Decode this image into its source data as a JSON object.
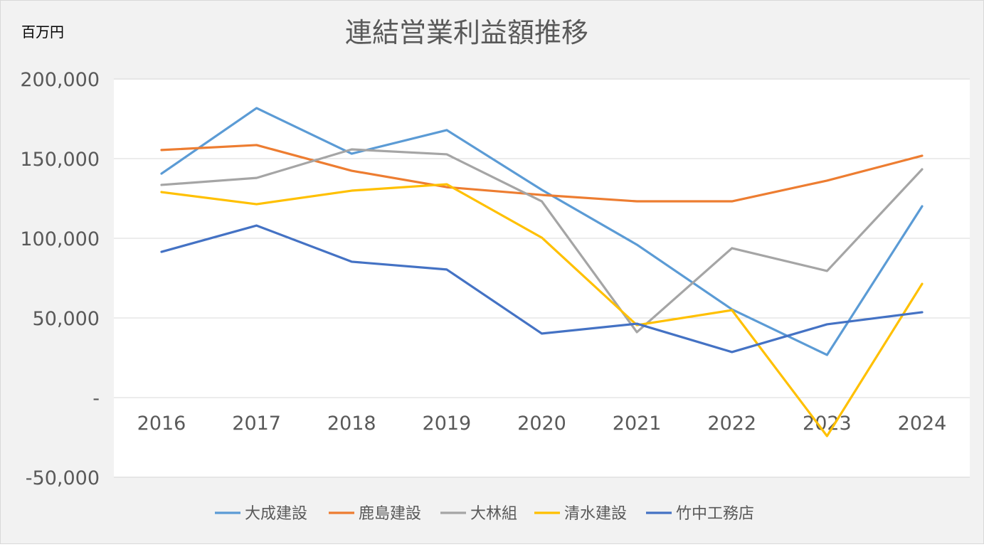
{
  "chart_data": {
    "type": "line",
    "title": "連結営業利益額推移",
    "ylabel": "百万円",
    "xlabel": "",
    "categories": [
      "2016",
      "2017",
      "2018",
      "2019",
      "2020",
      "2021",
      "2022",
      "2023",
      "2024"
    ],
    "ylim": [
      -50000,
      200000
    ],
    "yticks": [
      200000,
      150000,
      100000,
      50000,
      0,
      -50000
    ],
    "ytick_labels": [
      "200,000",
      "150,000",
      "100,000",
      "50,000",
      "-",
      "-50,000"
    ],
    "grid": true,
    "legend_position": "bottom",
    "series": [
      {
        "name": "大成建設",
        "color": "#5B9BD5",
        "values": [
          140600,
          181700,
          153100,
          167900,
          130400,
          96000,
          55400,
          26800,
          120100
        ]
      },
      {
        "name": "鹿島建設",
        "color": "#ED7D31",
        "values": [
          155400,
          158500,
          142400,
          132100,
          127200,
          123200,
          123200,
          136200,
          151800
        ]
      },
      {
        "name": "大林組",
        "color": "#A5A5A5",
        "values": [
          133500,
          137900,
          155800,
          152700,
          123200,
          41100,
          93800,
          79500,
          143300
        ]
      },
      {
        "name": "清水建設",
        "color": "#FFC000",
        "values": [
          129000,
          121400,
          129900,
          133900,
          100400,
          45500,
          54900,
          -24100,
          71400
        ]
      },
      {
        "name": "竹中工務店",
        "color": "#4472C4",
        "values": [
          91500,
          108000,
          85300,
          80400,
          40200,
          46400,
          28600,
          46000,
          53600
        ]
      }
    ]
  }
}
